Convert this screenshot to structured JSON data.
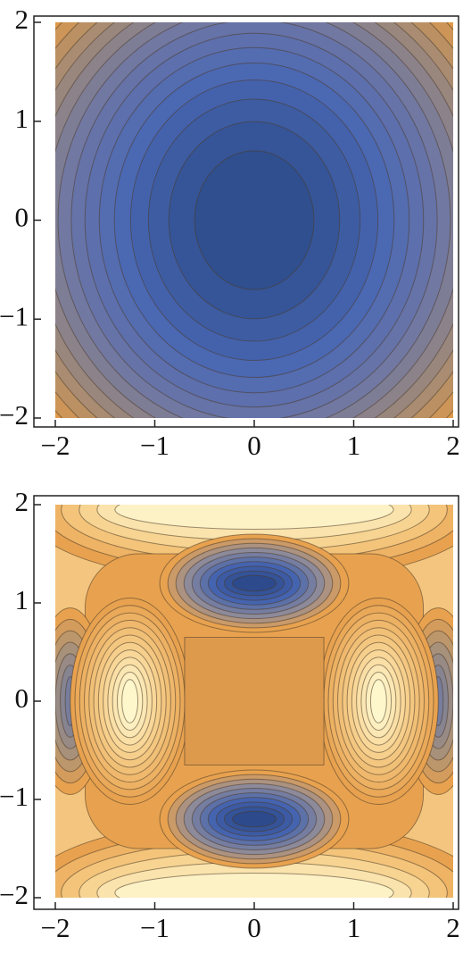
{
  "chart_data": [
    {
      "type": "contour",
      "xlim": [
        -2,
        2
      ],
      "ylim": [
        -2,
        2
      ],
      "xticks": [
        {
          "value": -2,
          "label": "−2"
        },
        {
          "value": -1,
          "label": "−1"
        },
        0,
        1,
        2
      ],
      "yticks": [
        {
          "value": -2,
          "label": "−2"
        },
        {
          "value": -1,
          "label": "−1"
        },
        0,
        1,
        2
      ]
    },
    {
      "type": "contour",
      "xlim": [
        -2,
        2
      ],
      "ylim": [
        -2,
        2
      ],
      "xticks": [
        {
          "value": -2,
          "label": "−2"
        },
        {
          "value": -1,
          "label": "−1"
        },
        0,
        1,
        2
      ],
      "yticks": [
        {
          "value": -2,
          "label": "−2"
        },
        {
          "value": -1,
          "label": "−1"
        },
        0,
        1,
        2
      ]
    }
  ]
}
